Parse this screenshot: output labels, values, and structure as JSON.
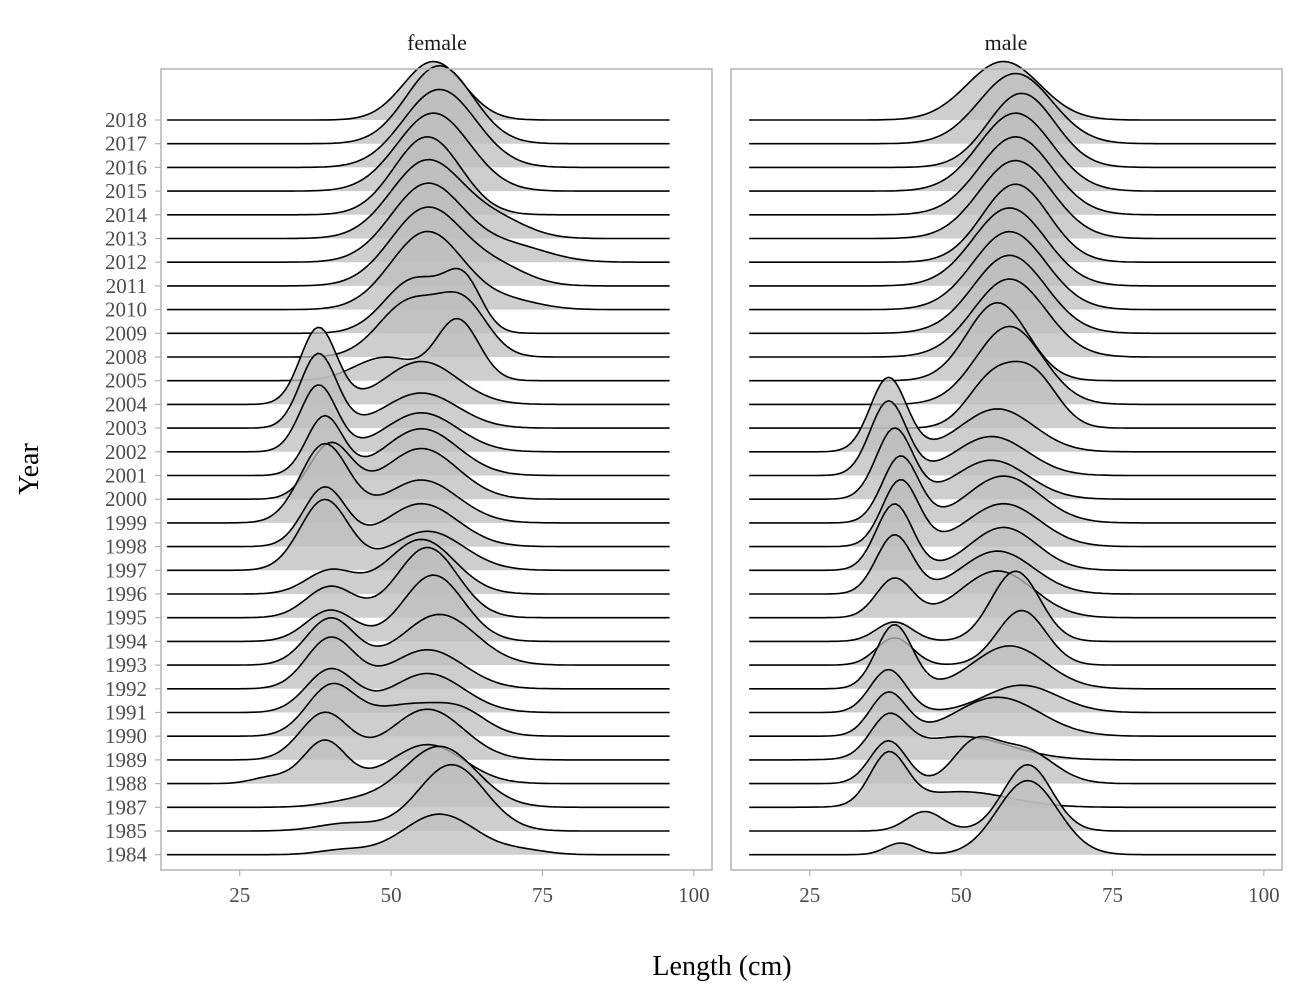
{
  "chart_data": {
    "type": "area",
    "subtype": "ridgeline",
    "xlabel": "Length (cm)",
    "ylabel": "Year",
    "xlim": [
      12,
      103
    ],
    "x_ticks": [
      25,
      50,
      75,
      100
    ],
    "years": [
      "1984",
      "1985",
      "1987",
      "1988",
      "1989",
      "1990",
      "1991",
      "1992",
      "1993",
      "1994",
      "1995",
      "1996",
      "1997",
      "1998",
      "1999",
      "2000",
      "2001",
      "2002",
      "2003",
      "2004",
      "2005",
      "2008",
      "2009",
      "2010",
      "2011",
      "2012",
      "2013",
      "2014",
      "2015",
      "2016",
      "2017",
      "2018"
    ],
    "fill_color": "#bdbdbd",
    "line_color": "#000000",
    "panels": [
      {
        "title": "female",
        "x_range": [
          13,
          96
        ],
        "series": [
          {
            "year": "1984",
            "components": [
              [
                42,
                4,
                0.06
              ],
              [
                58,
                6,
                0.52
              ],
              [
                72,
                4,
                0.05
              ]
            ]
          },
          {
            "year": "1985",
            "components": [
              [
                43,
                5,
                0.1
              ],
              [
                60,
                5.5,
                0.85
              ]
            ]
          },
          {
            "year": "1987",
            "components": [
              [
                44,
                5,
                0.08
              ],
              [
                58,
                6,
                0.78
              ]
            ]
          },
          {
            "year": "1988",
            "components": [
              [
                39,
                3.5,
                0.55
              ],
              [
                56,
                6,
                0.5
              ],
              [
                30,
                3,
                0.08
              ]
            ]
          },
          {
            "year": "1989",
            "components": [
              [
                39,
                4,
                0.6
              ],
              [
                56,
                6,
                0.65
              ]
            ]
          },
          {
            "year": "1990",
            "components": [
              [
                40,
                4,
                0.6
              ],
              [
                53,
                7,
                0.4
              ],
              [
                62,
                4,
                0.2
              ]
            ]
          },
          {
            "year": "1991",
            "components": [
              [
                40,
                4,
                0.55
              ],
              [
                56,
                6,
                0.5
              ]
            ]
          },
          {
            "year": "1992",
            "components": [
              [
                40,
                4,
                0.65
              ],
              [
                56,
                6,
                0.5
              ]
            ]
          },
          {
            "year": "1993",
            "components": [
              [
                40,
                4,
                0.6
              ],
              [
                58,
                6,
                0.65
              ]
            ]
          },
          {
            "year": "1994",
            "components": [
              [
                40,
                4,
                0.4
              ],
              [
                57,
                5,
                0.85
              ]
            ]
          },
          {
            "year": "1995",
            "components": [
              [
                40,
                4,
                0.4
              ],
              [
                56,
                5,
                0.9
              ]
            ]
          },
          {
            "year": "1996",
            "components": [
              [
                40,
                4,
                0.3
              ],
              [
                55,
                5.5,
                0.7
              ]
            ]
          },
          {
            "year": "1997",
            "components": [
              [
                39,
                4,
                0.9
              ],
              [
                56,
                6,
                0.5
              ]
            ]
          },
          {
            "year": "1998",
            "components": [
              [
                39,
                3.5,
                0.75
              ],
              [
                55,
                6,
                0.55
              ]
            ]
          },
          {
            "year": "1999",
            "components": [
              [
                39,
                4,
                1.0
              ],
              [
                55,
                6,
                0.55
              ]
            ]
          },
          {
            "year": "2000",
            "components": [
              [
                40,
                3.5,
                0.7
              ],
              [
                55,
                6,
                0.65
              ]
            ]
          },
          {
            "year": "2001",
            "components": [
              [
                39,
                3,
                0.75
              ],
              [
                55,
                6,
                0.6
              ]
            ]
          },
          {
            "year": "2002",
            "components": [
              [
                38,
                3,
                0.85
              ],
              [
                55,
                6,
                0.5
              ]
            ]
          },
          {
            "year": "2003",
            "components": [
              [
                38,
                3,
                0.95
              ],
              [
                55,
                6,
                0.45
              ]
            ]
          },
          {
            "year": "2004",
            "components": [
              [
                38,
                3,
                0.98
              ],
              [
                55,
                6,
                0.55
              ]
            ]
          },
          {
            "year": "2005",
            "components": [
              [
                49,
                5,
                0.3
              ],
              [
                61,
                3.5,
                0.78
              ]
            ]
          },
          {
            "year": "2008",
            "components": [
              [
                53,
                5,
                0.7
              ],
              [
                62,
                4,
                0.65
              ]
            ]
          },
          {
            "year": "2009",
            "components": [
              [
                54,
                5,
                0.7
              ],
              [
                62,
                3,
                0.6
              ]
            ]
          },
          {
            "year": "2010",
            "components": [
              [
                56,
                6,
                1.0
              ],
              [
                70,
                5,
                0.1
              ]
            ]
          },
          {
            "year": "2011",
            "components": [
              [
                56,
                6,
                1.0
              ],
              [
                68,
                5,
                0.2
              ]
            ]
          },
          {
            "year": "2012",
            "components": [
              [
                56,
                6,
                1.0
              ],
              [
                70,
                6,
                0.2
              ]
            ]
          },
          {
            "year": "2013",
            "components": [
              [
                56,
                6,
                1.0
              ],
              [
                68,
                5,
                0.2
              ]
            ]
          },
          {
            "year": "2014",
            "components": [
              [
                56,
                5.5,
                1.0
              ]
            ]
          },
          {
            "year": "2015",
            "components": [
              [
                57,
                6,
                1.0
              ]
            ]
          },
          {
            "year": "2016",
            "components": [
              [
                58,
                6,
                1.0
              ]
            ]
          },
          {
            "year": "2017",
            "components": [
              [
                58,
                5.5,
                1.0
              ]
            ]
          },
          {
            "year": "2018",
            "components": [
              [
                57,
                5,
                0.75
              ]
            ]
          }
        ]
      },
      {
        "title": "male",
        "x_range": [
          15,
          102
        ],
        "series": [
          {
            "year": "1984",
            "components": [
              [
                40,
                2.5,
                0.15
              ],
              [
                61,
                5,
                0.95
              ]
            ]
          },
          {
            "year": "1985",
            "components": [
              [
                44,
                3,
                0.25
              ],
              [
                61,
                4,
                0.85
              ]
            ]
          },
          {
            "year": "1987",
            "components": [
              [
                38,
                3,
                0.65
              ],
              [
                50,
                8,
                0.2
              ]
            ]
          },
          {
            "year": "1988",
            "components": [
              [
                38,
                3,
                0.55
              ],
              [
                52,
                3.5,
                0.45
              ],
              [
                60,
                5,
                0.45
              ]
            ]
          },
          {
            "year": "1989",
            "components": [
              [
                38,
                3,
                0.5
              ],
              [
                50,
                8,
                0.3
              ]
            ]
          },
          {
            "year": "1990",
            "components": [
              [
                38,
                3,
                0.55
              ],
              [
                56,
                7,
                0.5
              ]
            ]
          },
          {
            "year": "1991",
            "components": [
              [
                38,
                3,
                0.55
              ],
              [
                60,
                6,
                0.35
              ]
            ]
          },
          {
            "year": "1992",
            "components": [
              [
                39,
                3,
                0.82
              ],
              [
                58,
                6,
                0.55
              ]
            ]
          },
          {
            "year": "1993",
            "components": [
              [
                39,
                3,
                0.35
              ],
              [
                60,
                4,
                0.7
              ]
            ]
          },
          {
            "year": "1994",
            "components": [
              [
                39,
                3,
                0.25
              ],
              [
                59,
                4,
                0.9
              ]
            ]
          },
          {
            "year": "1995",
            "components": [
              [
                39,
                3,
                0.5
              ],
              [
                56,
                6,
                0.6
              ]
            ]
          },
          {
            "year": "1996",
            "components": [
              [
                39,
                3,
                0.75
              ],
              [
                56,
                6,
                0.55
              ]
            ]
          },
          {
            "year": "1997",
            "components": [
              [
                39,
                3,
                0.85
              ],
              [
                57,
                5.5,
                0.55
              ]
            ]
          },
          {
            "year": "1998",
            "components": [
              [
                40,
                3,
                0.85
              ],
              [
                57,
                6,
                0.55
              ]
            ]
          },
          {
            "year": "1999",
            "components": [
              [
                40,
                3,
                0.85
              ],
              [
                57,
                6,
                0.6
              ]
            ]
          },
          {
            "year": "2000",
            "components": [
              [
                39,
                3,
                0.9
              ],
              [
                55,
                6,
                0.5
              ]
            ]
          },
          {
            "year": "2001",
            "components": [
              [
                38,
                3,
                0.95
              ],
              [
                55,
                6,
                0.5
              ]
            ]
          },
          {
            "year": "2002",
            "components": [
              [
                38,
                3,
                0.95
              ],
              [
                56,
                6,
                0.55
              ]
            ]
          },
          {
            "year": "2003",
            "components": [
              [
                55,
                4,
                0.6
              ],
              [
                62,
                4,
                0.65
              ]
            ]
          },
          {
            "year": "2004",
            "components": [
              [
                58,
                5.5,
                1.0
              ]
            ]
          },
          {
            "year": "2005",
            "components": [
              [
                56,
                5,
                1.0
              ]
            ]
          },
          {
            "year": "2008",
            "components": [
              [
                58,
                6,
                1.0
              ]
            ]
          },
          {
            "year": "2009",
            "components": [
              [
                58,
                6,
                1.0
              ]
            ]
          },
          {
            "year": "2010",
            "components": [
              [
                58,
                6,
                1.0
              ]
            ]
          },
          {
            "year": "2011",
            "components": [
              [
                58,
                6,
                1.0
              ]
            ]
          },
          {
            "year": "2012",
            "components": [
              [
                59,
                5.5,
                1.0
              ]
            ]
          },
          {
            "year": "2013",
            "components": [
              [
                59,
                6,
                1.0
              ]
            ]
          },
          {
            "year": "2014",
            "components": [
              [
                59,
                6,
                1.0
              ]
            ]
          },
          {
            "year": "2015",
            "components": [
              [
                59,
                6,
                1.0
              ]
            ]
          },
          {
            "year": "2016",
            "components": [
              [
                60,
                5.5,
                0.95
              ]
            ]
          },
          {
            "year": "2017",
            "components": [
              [
                59,
                6,
                0.9
              ]
            ]
          },
          {
            "year": "2018",
            "components": [
              [
                57,
                6,
                0.75
              ]
            ]
          }
        ]
      }
    ]
  }
}
